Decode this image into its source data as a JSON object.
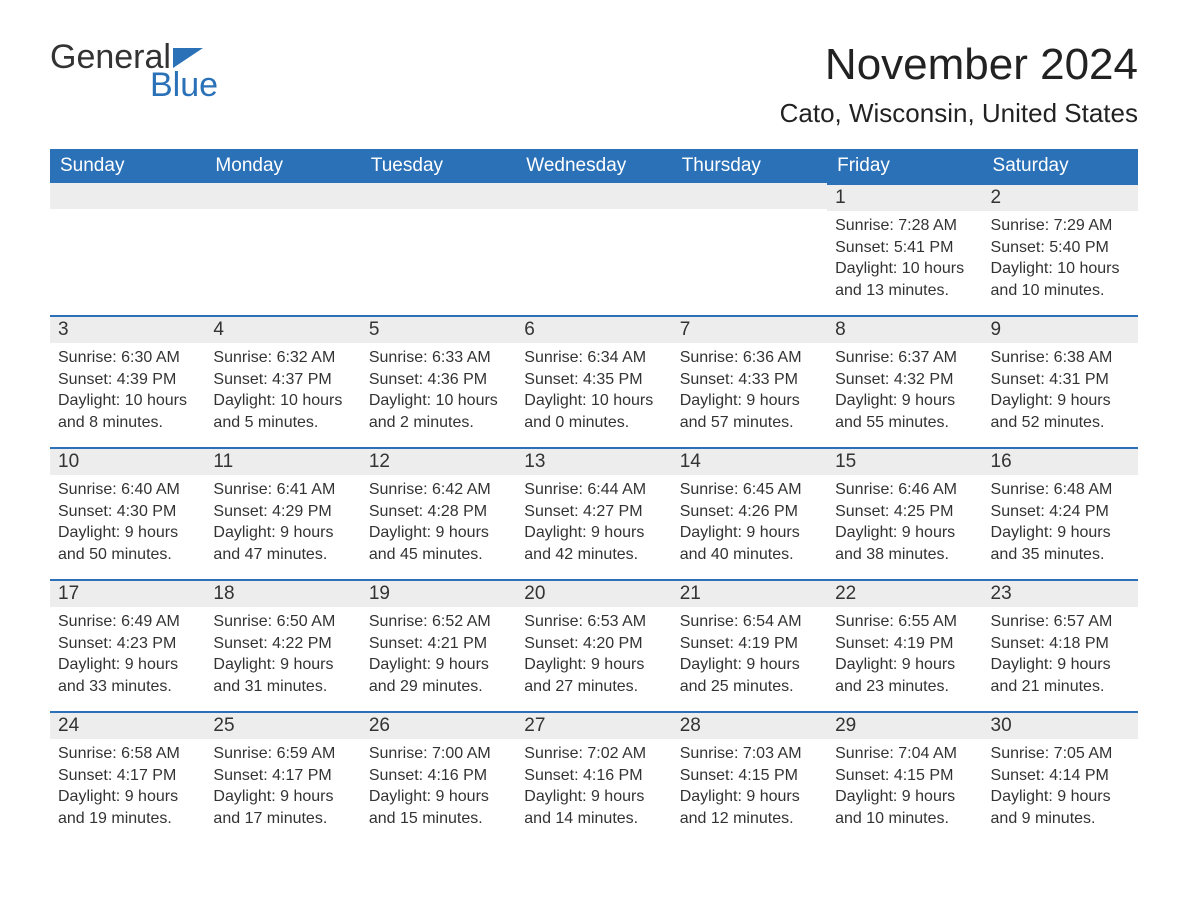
{
  "logo": {
    "word1": "General",
    "word2": "Blue",
    "icon_color": "#2a71b8"
  },
  "title": "November 2024",
  "location": "Cato, Wisconsin, United States",
  "colors": {
    "header_bg": "#2a71b8",
    "daynum_bg": "#ededed",
    "border": "#2a71b8"
  },
  "weekdays": [
    "Sunday",
    "Monday",
    "Tuesday",
    "Wednesday",
    "Thursday",
    "Friday",
    "Saturday"
  ],
  "weeks": [
    [
      null,
      null,
      null,
      null,
      null,
      {
        "d": "1",
        "sr": "7:28 AM",
        "ss": "5:41 PM",
        "dl": "10 hours and 13 minutes."
      },
      {
        "d": "2",
        "sr": "7:29 AM",
        "ss": "5:40 PM",
        "dl": "10 hours and 10 minutes."
      }
    ],
    [
      {
        "d": "3",
        "sr": "6:30 AM",
        "ss": "4:39 PM",
        "dl": "10 hours and 8 minutes."
      },
      {
        "d": "4",
        "sr": "6:32 AM",
        "ss": "4:37 PM",
        "dl": "10 hours and 5 minutes."
      },
      {
        "d": "5",
        "sr": "6:33 AM",
        "ss": "4:36 PM",
        "dl": "10 hours and 2 minutes."
      },
      {
        "d": "6",
        "sr": "6:34 AM",
        "ss": "4:35 PM",
        "dl": "10 hours and 0 minutes."
      },
      {
        "d": "7",
        "sr": "6:36 AM",
        "ss": "4:33 PM",
        "dl": "9 hours and 57 minutes."
      },
      {
        "d": "8",
        "sr": "6:37 AM",
        "ss": "4:32 PM",
        "dl": "9 hours and 55 minutes."
      },
      {
        "d": "9",
        "sr": "6:38 AM",
        "ss": "4:31 PM",
        "dl": "9 hours and 52 minutes."
      }
    ],
    [
      {
        "d": "10",
        "sr": "6:40 AM",
        "ss": "4:30 PM",
        "dl": "9 hours and 50 minutes."
      },
      {
        "d": "11",
        "sr": "6:41 AM",
        "ss": "4:29 PM",
        "dl": "9 hours and 47 minutes."
      },
      {
        "d": "12",
        "sr": "6:42 AM",
        "ss": "4:28 PM",
        "dl": "9 hours and 45 minutes."
      },
      {
        "d": "13",
        "sr": "6:44 AM",
        "ss": "4:27 PM",
        "dl": "9 hours and 42 minutes."
      },
      {
        "d": "14",
        "sr": "6:45 AM",
        "ss": "4:26 PM",
        "dl": "9 hours and 40 minutes."
      },
      {
        "d": "15",
        "sr": "6:46 AM",
        "ss": "4:25 PM",
        "dl": "9 hours and 38 minutes."
      },
      {
        "d": "16",
        "sr": "6:48 AM",
        "ss": "4:24 PM",
        "dl": "9 hours and 35 minutes."
      }
    ],
    [
      {
        "d": "17",
        "sr": "6:49 AM",
        "ss": "4:23 PM",
        "dl": "9 hours and 33 minutes."
      },
      {
        "d": "18",
        "sr": "6:50 AM",
        "ss": "4:22 PM",
        "dl": "9 hours and 31 minutes."
      },
      {
        "d": "19",
        "sr": "6:52 AM",
        "ss": "4:21 PM",
        "dl": "9 hours and 29 minutes."
      },
      {
        "d": "20",
        "sr": "6:53 AM",
        "ss": "4:20 PM",
        "dl": "9 hours and 27 minutes."
      },
      {
        "d": "21",
        "sr": "6:54 AM",
        "ss": "4:19 PM",
        "dl": "9 hours and 25 minutes."
      },
      {
        "d": "22",
        "sr": "6:55 AM",
        "ss": "4:19 PM",
        "dl": "9 hours and 23 minutes."
      },
      {
        "d": "23",
        "sr": "6:57 AM",
        "ss": "4:18 PM",
        "dl": "9 hours and 21 minutes."
      }
    ],
    [
      {
        "d": "24",
        "sr": "6:58 AM",
        "ss": "4:17 PM",
        "dl": "9 hours and 19 minutes."
      },
      {
        "d": "25",
        "sr": "6:59 AM",
        "ss": "4:17 PM",
        "dl": "9 hours and 17 minutes."
      },
      {
        "d": "26",
        "sr": "7:00 AM",
        "ss": "4:16 PM",
        "dl": "9 hours and 15 minutes."
      },
      {
        "d": "27",
        "sr": "7:02 AM",
        "ss": "4:16 PM",
        "dl": "9 hours and 14 minutes."
      },
      {
        "d": "28",
        "sr": "7:03 AM",
        "ss": "4:15 PM",
        "dl": "9 hours and 12 minutes."
      },
      {
        "d": "29",
        "sr": "7:04 AM",
        "ss": "4:15 PM",
        "dl": "9 hours and 10 minutes."
      },
      {
        "d": "30",
        "sr": "7:05 AM",
        "ss": "4:14 PM",
        "dl": "9 hours and 9 minutes."
      }
    ]
  ],
  "labels": {
    "sunrise": "Sunrise: ",
    "sunset": "Sunset: ",
    "daylight": "Daylight: "
  }
}
